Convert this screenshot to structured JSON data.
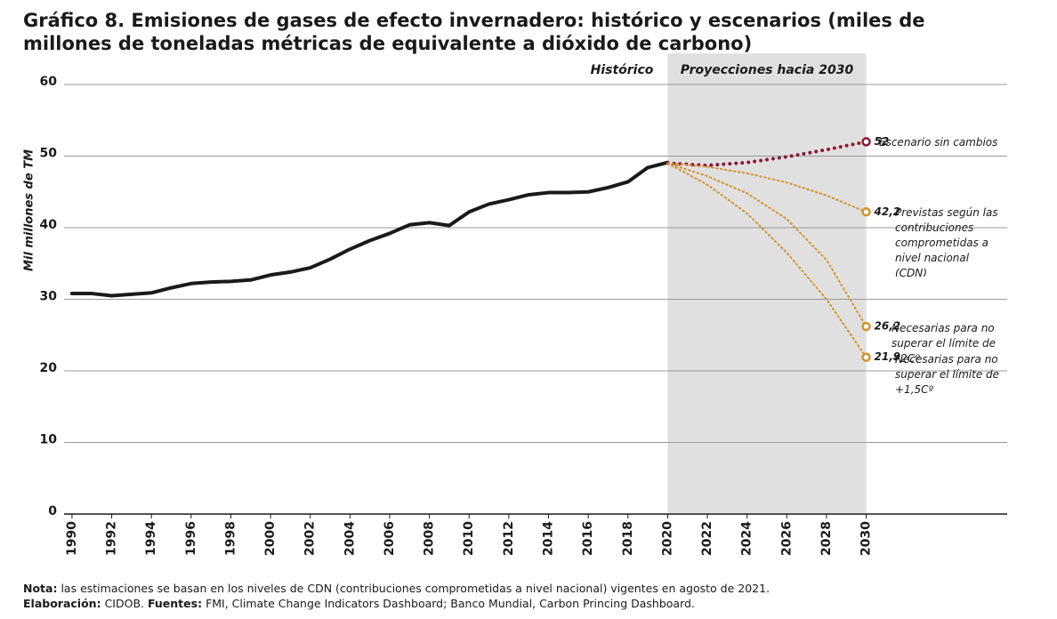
{
  "chart_data": {
    "type": "line",
    "title": "Gráfico 8. Emisiones de gases de efecto invernadero: histórico y escenarios (miles de millones de toneladas métricas de equivalente a dióxido de carbono)",
    "y_label": "Mil millones de TM",
    "region_labels": [
      "Histórico",
      "Proyecciones hacia 2030"
    ],
    "projection_span": [
      2020,
      2030
    ],
    "xlim": [
      1989.6,
      2037.1
    ],
    "xticks": [
      1990,
      1992,
      1994,
      1996,
      1998,
      2000,
      2002,
      2004,
      2006,
      2008,
      2010,
      2012,
      2014,
      2016,
      2018,
      2020,
      2022,
      2024,
      2026,
      2028,
      2030
    ],
    "ylim": [
      0,
      60
    ],
    "yticks": [
      0,
      10,
      20,
      30,
      40,
      50,
      60
    ],
    "grid": true,
    "series": [
      {
        "color": "#1a1a1a",
        "style": "solid",
        "x": [
          1990,
          1991,
          1992,
          1993,
          1994,
          1995,
          1996,
          1997,
          1998,
          1999,
          2000,
          2001,
          2002,
          2003,
          2004,
          2005,
          2006,
          2007,
          2008,
          2009,
          2010,
          2011,
          2012,
          2013,
          2014,
          2015,
          2016,
          2017,
          2018,
          2019,
          2020
        ],
        "values": [
          30.8,
          30.8,
          30.5,
          30.7,
          30.9,
          31.6,
          32.2,
          32.4,
          32.5,
          32.7,
          33.4,
          33.8,
          34.4,
          35.6,
          37.0,
          38.2,
          39.2,
          40.4,
          40.7,
          40.3,
          42.2,
          43.3,
          43.9,
          44.6,
          44.9,
          44.9,
          45.0,
          45.6,
          46.4,
          48.4,
          49.1
        ]
      },
      {
        "name": "Escenario sin cambios",
        "color": "#8b1a3a",
        "style": "dotted",
        "x": [
          2020,
          2022,
          2024,
          2026,
          2028,
          2030
        ],
        "values": [
          49.0,
          48.7,
          49.1,
          49.9,
          50.9,
          52
        ],
        "value_labels": [
          null,
          null,
          null,
          null,
          null,
          "52"
        ]
      },
      {
        "name": "Previstas según las contribuciones comprometidas a nivel nacional (CDN)",
        "color": "#d4922a",
        "style": "dotted",
        "x": [
          2020,
          2022,
          2024,
          2026,
          2028,
          2030
        ],
        "values": [
          49.0,
          48.5,
          47.6,
          46.3,
          44.5,
          42.2
        ],
        "value_labels": [
          null,
          null,
          null,
          null,
          null,
          "42,2"
        ]
      },
      {
        "name": "Necesarias para no superar el límite de +2Cº",
        "color": "#d4922a",
        "style": "dotted",
        "x": [
          2020,
          2022,
          2024,
          2026,
          2028,
          2030
        ],
        "values": [
          49.0,
          47.2,
          44.8,
          41.2,
          35.5,
          26.2
        ],
        "value_labels": [
          null,
          null,
          null,
          null,
          null,
          "26,2"
        ]
      },
      {
        "name": "Necesarias para no superar el límite de +1,5Cº",
        "color": "#d4922a",
        "style": "dotted",
        "x": [
          2020,
          2022,
          2024,
          2026,
          2028,
          2030
        ],
        "values": [
          49.0,
          46.0,
          42.0,
          36.5,
          30.0,
          21.9
        ],
        "value_labels": [
          null,
          null,
          null,
          null,
          null,
          "21,9"
        ]
      }
    ]
  },
  "notes": [
    {
      "label": "Nota:",
      "text": "las estimaciones se basan en los niveles de CDN (contribuciones comprometidas a nivel nacional) vigentes en agosto de 2021."
    },
    {
      "label": "Elaboración:",
      "text": "CIDOB.",
      "label2": "Fuentes:",
      "text2": "FMI, Climate Change Indicators Dashboard; Banco Mundial, Carbon Princing Dashboard."
    }
  ]
}
